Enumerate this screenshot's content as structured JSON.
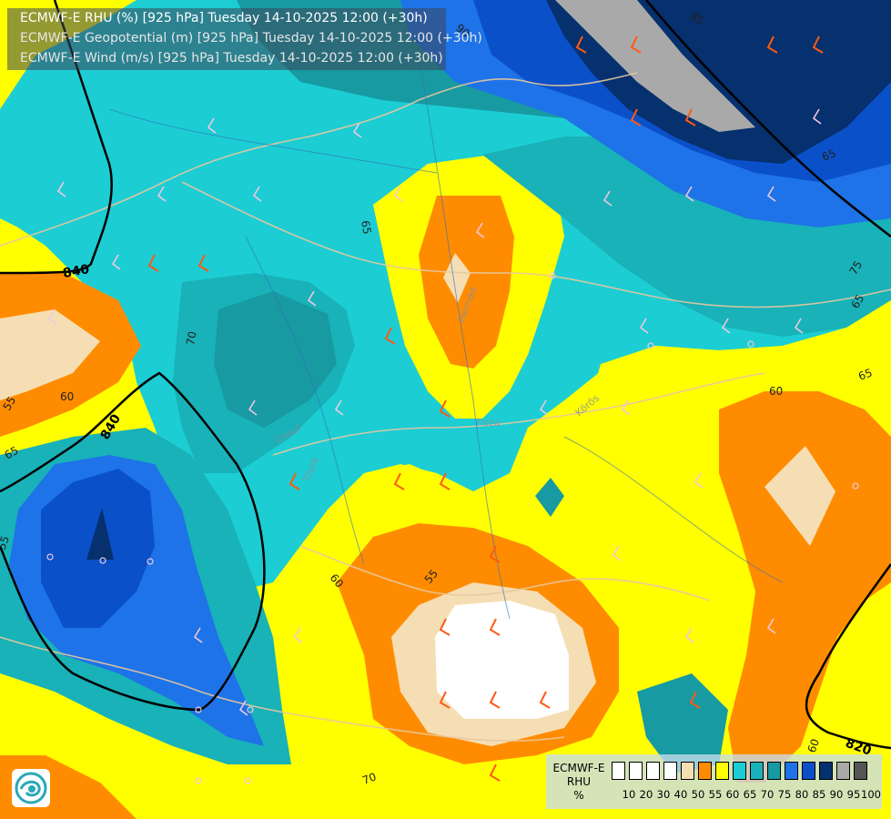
{
  "title_lines": [
    "ECMWF-E RHU (%) [925 hPa] Tuesday 14-10-2025 12:00 (+30h)",
    "ECMWF-E Geopotential (m) [925 hPa] Tuesday 14-10-2025 12:00 (+30h)",
    "ECMWF-E Wind (m/s) [925 hPa] Tuesday 14-10-2025 12:00 (+30h)"
  ],
  "legend": {
    "title_line1": "ECMWF-E",
    "title_line2": "RHU",
    "title_line3": "%",
    "ticks": [
      "10",
      "20",
      "30",
      "40",
      "50",
      "55",
      "60",
      "65",
      "70",
      "75",
      "80",
      "85",
      "90",
      "95",
      "100"
    ],
    "colors": [
      "#ffffff",
      "#ffffff",
      "#ffffff",
      "#ffffff",
      "#f5deb3",
      "#ff8c00",
      "#ffff00",
      "#1ccdd3",
      "#18b2b8",
      "#179aa2",
      "#1e73e8",
      "#0a50c8",
      "#06306e",
      "#a9a9a9",
      "#555555"
    ]
  },
  "contour_labels": {
    "rhu": [
      "90",
      "85",
      "85",
      "75",
      "65",
      "65",
      "60",
      "60",
      "60",
      "55",
      "65",
      "70",
      "70",
      "60",
      "65",
      "55",
      "55"
    ],
    "geopotential": [
      "840",
      "840",
      "820"
    ]
  },
  "place_labels": [
    "Tisza",
    "Hernád",
    "Tisza",
    "Körös",
    "Crisul"
  ],
  "colors": {
    "white": "#ffffff",
    "wheat": "#f5deb3",
    "orange": "#ff8c00",
    "yellow": "#ffff00",
    "cyan": "#1ccdd3",
    "teal": "#18b2b8",
    "darkteal": "#179aa2",
    "blue": "#1e73e8",
    "royal": "#0a50c8",
    "navy": "#06306e",
    "gray": "#a9a9a9"
  },
  "icons": [
    "ecmwf-logo-icon",
    "wind-barb-icon"
  ]
}
